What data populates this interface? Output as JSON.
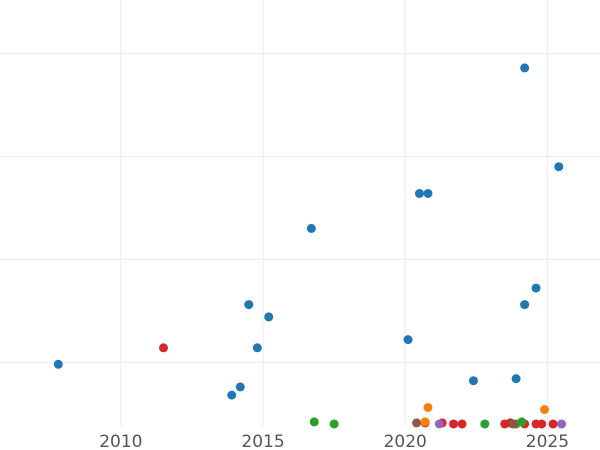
{
  "chart_data": {
    "type": "scatter",
    "title": "",
    "xlabel": "",
    "ylabel": "",
    "xlim": [
      2005.75,
      2026.85
    ],
    "ylim": [
      -0.1,
      20.6
    ],
    "x_ticks": [
      2010,
      2015,
      2020,
      2025
    ],
    "x_tick_labels": [
      "2010",
      "2015",
      "2020",
      "2025"
    ],
    "y_gridlines": [
      3,
      8,
      13,
      18
    ],
    "grid": true,
    "legend": "none",
    "colors": {
      "blue": "#1f77b4",
      "red": "#d62728",
      "green": "#2ca02c",
      "orange": "#ff7f0e",
      "purple": "#9467bd",
      "brown": "#8c564b"
    },
    "series": [
      {
        "color": "#1f77b4",
        "points": [
          {
            "x": 2007.8,
            "y": 2.9
          },
          {
            "x": 2013.9,
            "y": 1.4
          },
          {
            "x": 2014.2,
            "y": 1.8
          },
          {
            "x": 2014.5,
            "y": 5.8
          },
          {
            "x": 2014.8,
            "y": 3.7
          },
          {
            "x": 2015.2,
            "y": 5.2
          },
          {
            "x": 2016.7,
            "y": 9.5
          },
          {
            "x": 2020.1,
            "y": 4.1
          },
          {
            "x": 2020.5,
            "y": 11.2
          },
          {
            "x": 2020.8,
            "y": 11.2
          },
          {
            "x": 2022.4,
            "y": 2.1
          },
          {
            "x": 2023.9,
            "y": 2.2
          },
          {
            "x": 2024.2,
            "y": 17.3
          },
          {
            "x": 2024.2,
            "y": 5.8
          },
          {
            "x": 2024.6,
            "y": 6.6
          },
          {
            "x": 2025.4,
            "y": 12.5
          }
        ]
      },
      {
        "color": "#d62728",
        "points": [
          {
            "x": 2011.5,
            "y": 3.7
          },
          {
            "x": 2020.7,
            "y": 0.05
          },
          {
            "x": 2021.3,
            "y": 0.05
          },
          {
            "x": 2021.7,
            "y": 0.0
          },
          {
            "x": 2022.0,
            "y": 0.0
          },
          {
            "x": 2023.5,
            "y": 0.0
          },
          {
            "x": 2023.7,
            "y": 0.05
          },
          {
            "x": 2024.2,
            "y": 0.0
          },
          {
            "x": 2024.6,
            "y": 0.0
          },
          {
            "x": 2024.8,
            "y": 0.0
          },
          {
            "x": 2025.2,
            "y": 0.0
          }
        ]
      },
      {
        "color": "#2ca02c",
        "points": [
          {
            "x": 2016.8,
            "y": 0.1
          },
          {
            "x": 2017.5,
            "y": 0.0
          },
          {
            "x": 2022.8,
            "y": 0.0
          },
          {
            "x": 2024.1,
            "y": 0.1
          },
          {
            "x": 2023.9,
            "y": 0.0
          }
        ]
      },
      {
        "color": "#ff7f0e",
        "points": [
          {
            "x": 2020.8,
            "y": 0.8
          },
          {
            "x": 2024.9,
            "y": 0.7
          },
          {
            "x": 2020.7,
            "y": 0.1
          }
        ]
      },
      {
        "color": "#9467bd",
        "points": [
          {
            "x": 2021.2,
            "y": 0.0
          },
          {
            "x": 2025.5,
            "y": 0.0
          }
        ]
      },
      {
        "color": "#8c564b",
        "points": [
          {
            "x": 2020.4,
            "y": 0.05
          },
          {
            "x": 2023.8,
            "y": 0.0
          }
        ]
      }
    ]
  }
}
